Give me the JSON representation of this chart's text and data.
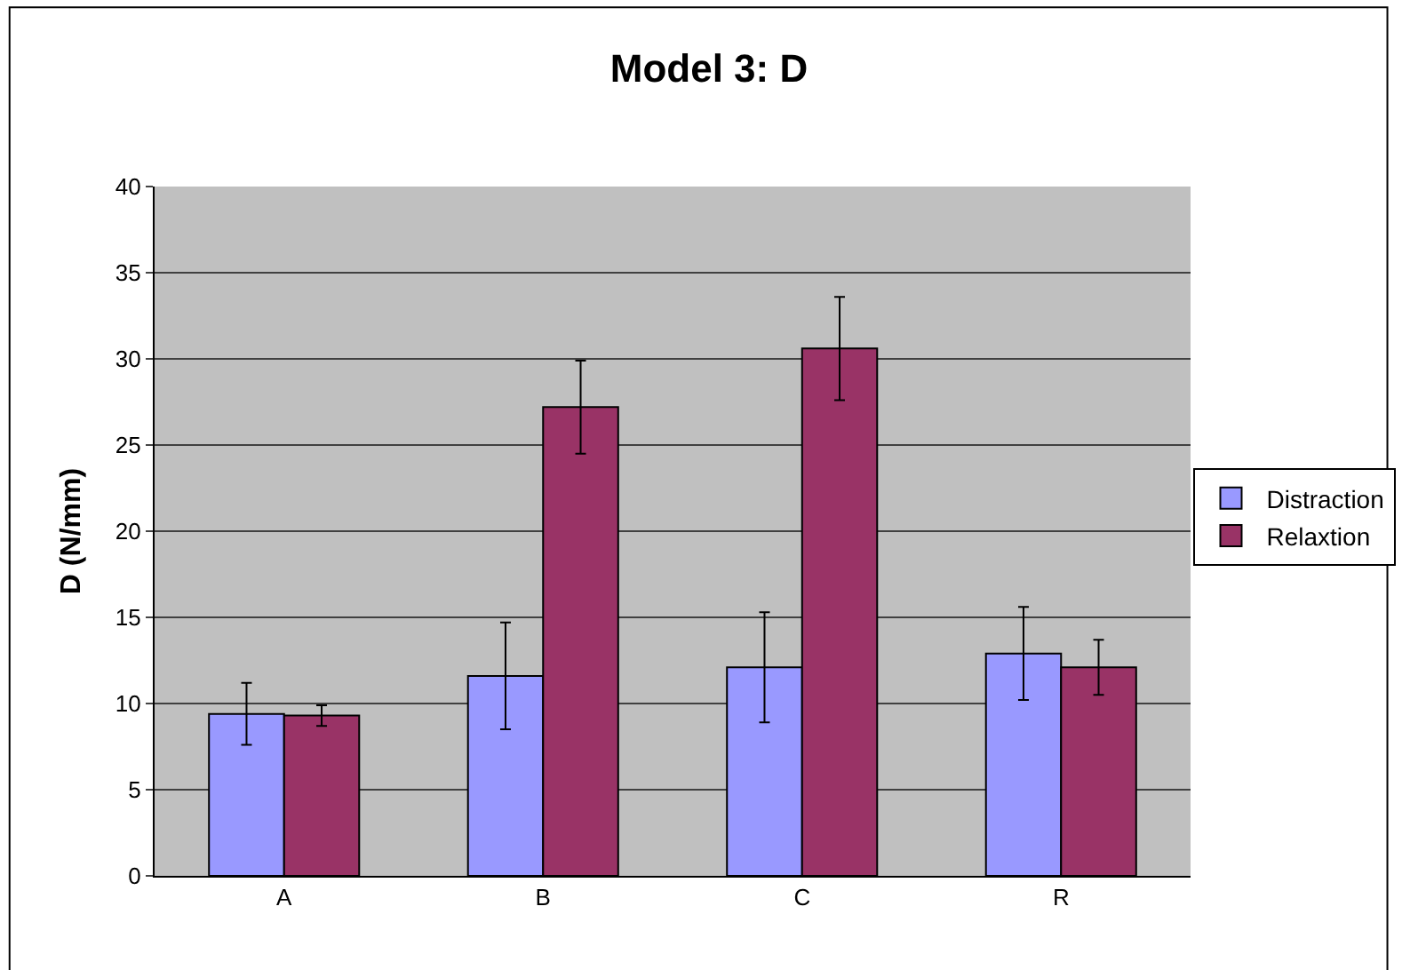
{
  "chart_data": {
    "type": "bar",
    "title": "Model 3: D",
    "ylabel": "D (N/mm)",
    "categories": [
      "A",
      "B",
      "C",
      "R"
    ],
    "series": [
      {
        "name": "Distraction",
        "color": "#9999ff",
        "values": [
          9.4,
          11.6,
          12.1,
          12.9
        ],
        "errors": [
          1.8,
          3.1,
          3.2,
          2.7
        ]
      },
      {
        "name": "Relaxtion",
        "color": "#993366",
        "values": [
          9.3,
          27.2,
          30.6,
          12.1
        ],
        "errors": [
          0.6,
          2.7,
          3.0,
          1.6
        ]
      }
    ],
    "ylim": [
      0,
      40
    ],
    "yticks": [
      0,
      5,
      10,
      15,
      20,
      25,
      30,
      35,
      40
    ],
    "grid": "y",
    "legend": "right"
  }
}
